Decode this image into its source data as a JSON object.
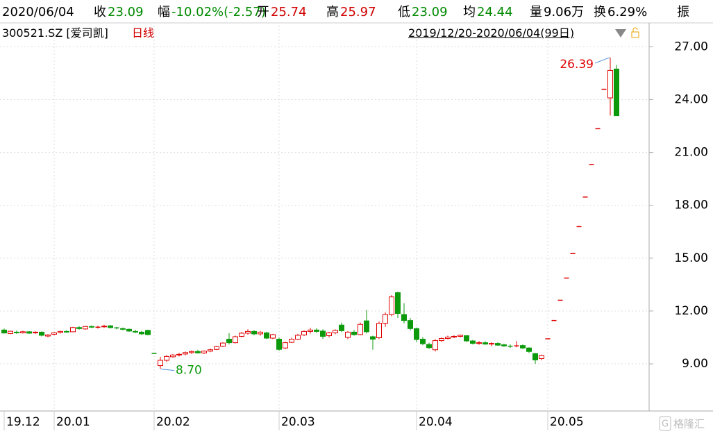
{
  "header": {
    "date": "2020/06/04",
    "items": [
      {
        "label": "收",
        "value": "23.09",
        "color": "#008a00"
      },
      {
        "label": "幅",
        "value": "-10.02%(-2.57)",
        "color": "#008a00"
      },
      {
        "label": "开",
        "value": "25.74",
        "color": "#d00000"
      },
      {
        "label": "高",
        "value": "25.97",
        "color": "#d00000"
      },
      {
        "label": "低",
        "value": "23.09",
        "color": "#008a00"
      },
      {
        "label": "均",
        "value": "24.44",
        "color": "#008a00"
      },
      {
        "label": "量",
        "value": "9.06万",
        "color": "#000000"
      },
      {
        "label": "换",
        "value": "6.29%",
        "color": "#000000"
      },
      {
        "label": "振",
        "value": null,
        "color": "#000000"
      }
    ]
  },
  "subheader": {
    "symbol": "300521.SZ [爱司凯]",
    "period": "日线",
    "range": "2019/12/20-2020/06/04(99日)"
  },
  "watermark": "格隆汇",
  "chart_data": {
    "type": "candlestick",
    "up_color": "#e00000",
    "down_color": "#0c9a0c",
    "grid": true,
    "categories": [
      "19.12",
      null,
      null,
      null,
      null,
      null,
      null,
      null,
      "20.01",
      null,
      null,
      null,
      null,
      null,
      null,
      null,
      null,
      null,
      null,
      null,
      null,
      null,
      null,
      null,
      "20.02",
      null,
      null,
      null,
      null,
      null,
      null,
      null,
      null,
      null,
      null,
      null,
      null,
      null,
      null,
      null,
      null,
      null,
      null,
      null,
      "20.03",
      null,
      null,
      null,
      null,
      null,
      null,
      null,
      null,
      null,
      null,
      null,
      null,
      null,
      null,
      null,
      null,
      null,
      null,
      null,
      null,
      null,
      "20.04",
      null,
      null,
      null,
      null,
      null,
      null,
      null,
      null,
      null,
      null,
      null,
      null,
      null,
      null,
      null,
      null,
      null,
      null,
      null,
      null,
      "20.05",
      null,
      null,
      null,
      null,
      null,
      null,
      null,
      null,
      null,
      null,
      null
    ],
    "open": [
      10.92,
      10.72,
      10.8,
      10.76,
      10.82,
      10.76,
      10.8,
      10.58,
      10.68,
      10.78,
      10.84,
      10.82,
      11.06,
      10.98,
      11.12,
      11.08,
      11.1,
      11.16,
      11.04,
      11.0,
      10.96,
      10.84,
      10.8,
      10.9,
      9.59,
      8.9,
      9.2,
      9.4,
      9.5,
      9.56,
      9.64,
      9.7,
      9.62,
      9.72,
      9.82,
      10.0,
      10.4,
      10.2,
      10.56,
      10.74,
      10.84,
      10.7,
      10.76,
      10.46,
      10.4,
      9.9,
      10.22,
      10.4,
      10.64,
      10.84,
      10.92,
      10.86,
      10.6,
      10.76,
      11.2,
      10.5,
      10.8,
      10.66,
      11.44,
      10.54,
      10.48,
      11.3,
      11.8,
      13.04,
      11.8,
      11.46,
      11.0,
      10.4,
      10.1,
      9.8,
      10.32,
      10.44,
      10.52,
      10.56,
      10.6,
      10.3,
      10.16,
      10.2,
      10.12,
      10.16,
      10.08,
      10.0,
      10.02,
      10.04,
      9.9,
      9.58,
      9.3,
      10.42,
      11.46,
      12.61,
      13.87,
      15.26,
      16.79,
      18.47,
      20.32,
      22.35,
      24.59,
      24.1,
      25.74
    ],
    "high": [
      11.0,
      10.88,
      10.9,
      10.88,
      10.86,
      10.85,
      10.84,
      10.68,
      10.8,
      10.88,
      10.92,
      11.1,
      11.14,
      11.16,
      11.18,
      11.16,
      11.22,
      11.2,
      11.1,
      11.06,
      11.0,
      10.94,
      10.86,
      10.94,
      9.59,
      9.4,
      9.5,
      9.56,
      9.62,
      9.7,
      9.76,
      9.8,
      9.76,
      9.86,
      10.02,
      10.22,
      10.74,
      10.6,
      10.8,
      10.96,
      10.92,
      10.86,
      10.82,
      10.7,
      10.5,
      10.26,
      10.48,
      10.7,
      10.9,
      11.04,
      11.02,
      10.96,
      10.82,
      10.96,
      11.34,
      10.86,
      10.92,
      11.34,
      12.06,
      10.6,
      11.4,
      11.92,
      12.9,
      13.1,
      12.44,
      11.6,
      11.06,
      10.52,
      10.2,
      10.4,
      10.5,
      10.6,
      10.62,
      10.66,
      10.62,
      10.36,
      10.3,
      10.28,
      10.22,
      10.22,
      10.14,
      10.1,
      10.3,
      10.1,
      9.94,
      9.62,
      9.52,
      10.42,
      11.46,
      12.61,
      13.87,
      15.26,
      16.79,
      18.47,
      20.32,
      22.35,
      24.59,
      26.39,
      25.97
    ],
    "low": [
      10.72,
      10.68,
      10.7,
      10.72,
      10.7,
      10.7,
      10.56,
      10.5,
      10.62,
      10.72,
      10.76,
      10.8,
      10.94,
      10.94,
      11.02,
      11.0,
      11.04,
      11.0,
      10.96,
      10.9,
      10.82,
      10.74,
      10.64,
      10.62,
      9.59,
      8.7,
      9.1,
      9.34,
      9.42,
      9.48,
      9.56,
      9.58,
      9.56,
      9.66,
      9.78,
      9.96,
      10.1,
      10.16,
      10.5,
      10.66,
      10.62,
      10.6,
      10.4,
      10.4,
      9.74,
      9.84,
      10.18,
      10.36,
      10.58,
      10.72,
      10.76,
      10.42,
      10.5,
      10.68,
      10.8,
      10.4,
      10.6,
      10.62,
      10.72,
      9.8,
      10.4,
      11.1,
      11.7,
      11.6,
      11.3,
      10.9,
      10.24,
      10.06,
      9.84,
      9.7,
      10.24,
      10.38,
      10.46,
      10.5,
      10.24,
      10.1,
      10.08,
      10.08,
      10.0,
      10.02,
      9.96,
      9.9,
      9.94,
      9.84,
      9.62,
      9.0,
      9.2,
      10.42,
      11.46,
      12.61,
      13.87,
      15.26,
      16.79,
      18.47,
      20.32,
      22.35,
      24.59,
      23.1,
      23.09
    ],
    "close": [
      10.75,
      10.85,
      10.76,
      10.82,
      10.74,
      10.8,
      10.62,
      10.64,
      10.76,
      10.84,
      10.8,
      11.06,
      11.0,
      11.12,
      11.08,
      11.1,
      11.14,
      11.06,
      11.02,
      10.96,
      10.86,
      10.8,
      10.7,
      10.66,
      9.59,
      9.2,
      9.42,
      9.5,
      9.54,
      9.64,
      9.7,
      9.62,
      9.72,
      9.8,
      9.98,
      10.18,
      10.2,
      10.54,
      10.74,
      10.84,
      10.7,
      10.8,
      10.46,
      10.66,
      9.82,
      10.2,
      10.4,
      10.62,
      10.84,
      10.92,
      10.84,
      10.56,
      10.76,
      10.9,
      10.88,
      10.8,
      10.66,
      11.24,
      10.82,
      10.4,
      11.3,
      11.8,
      12.8,
      11.86,
      11.46,
      11.0,
      10.38,
      10.14,
      9.92,
      10.32,
      10.44,
      10.52,
      10.56,
      10.62,
      10.3,
      10.16,
      10.2,
      10.12,
      10.16,
      10.06,
      10.02,
      9.98,
      10.04,
      9.9,
      9.7,
      9.22,
      9.47,
      10.42,
      11.46,
      12.61,
      13.87,
      15.26,
      16.79,
      18.47,
      20.32,
      22.35,
      24.59,
      25.66,
      23.09
    ],
    "ylim": [
      6.4,
      28.2
    ],
    "yticks": [
      {
        "value": 27,
        "label": "27.00"
      },
      {
        "value": 24,
        "label": "24.00"
      },
      {
        "value": 21,
        "label": "21.00"
      },
      {
        "value": 18,
        "label": "18.00"
      },
      {
        "value": 15,
        "label": "15.00"
      },
      {
        "value": 12,
        "label": "12.00"
      },
      {
        "value": 9,
        "label": "9.00"
      }
    ],
    "max_label": "26.39",
    "min_label": "8.70"
  }
}
